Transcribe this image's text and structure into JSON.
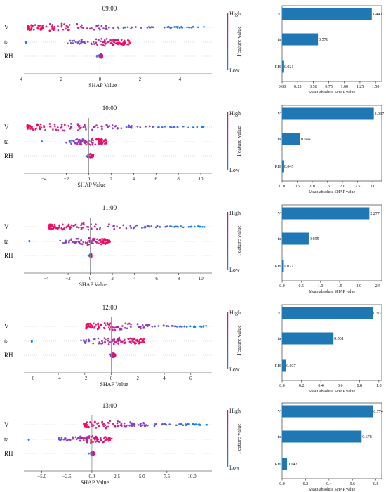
{
  "colors": {
    "high": "#ff0052",
    "low": "#008bfb",
    "bar": "#1f77b4"
  },
  "colorbar": {
    "high_label": "High",
    "low_label": "Low",
    "title": "Feature value"
  },
  "chart_data": [
    {
      "type": "scatter",
      "title": "09:00",
      "xlabel": "SHAP Value",
      "features": [
        "V",
        "ta",
        "RH"
      ],
      "xlim": [
        -3.8,
        5.6
      ],
      "xticks": [
        -4,
        -2,
        0,
        2,
        4
      ],
      "xticklabels": [
        "−4",
        "−2",
        "0",
        "2",
        "4"
      ],
      "spread": [
        [
          -3.6,
          5.3
        ],
        [
          -3.7,
          1.5
        ],
        [
          -0.15,
          0.12
        ]
      ]
    },
    {
      "type": "bar",
      "xlabel": "Mean absolute SHAP value",
      "categories": [
        "V",
        "ta",
        "RH"
      ],
      "values": [
        1.44,
        0.576,
        0.021
      ],
      "value_labels": [
        "1.440",
        "0.576",
        "0.021"
      ],
      "xlim": [
        0,
        1.6
      ],
      "xticks": [
        0,
        0.25,
        0.5,
        0.75,
        1.0,
        1.25,
        1.5
      ],
      "xticklabels": [
        "0.00",
        "0.25",
        "0.50",
        "0.75",
        "1.00",
        "1.25",
        "1.50"
      ]
    },
    {
      "type": "scatter",
      "title": "10:00",
      "xlabel": "SHAP Value",
      "features": [
        "V",
        "ta",
        "RH"
      ],
      "xlim": [
        -5.8,
        11
      ],
      "xticks": [
        -4,
        -2,
        0,
        2,
        4,
        6,
        8,
        10
      ],
      "xticklabels": [
        "−4",
        "−2",
        "0",
        "2",
        "4",
        "6",
        "8",
        "10"
      ],
      "spread": [
        [
          -5.5,
          10.5
        ],
        [
          -4.2,
          1.6
        ],
        [
          -0.6,
          0.4
        ]
      ]
    },
    {
      "type": "bar",
      "xlabel": "Mean absolute SHAP value",
      "categories": [
        "V",
        "ta",
        "RH"
      ],
      "values": [
        3.037,
        0.604,
        0.045
      ],
      "value_labels": [
        "3.037",
        "0.604",
        "0.045"
      ],
      "xlim": [
        0,
        3.3
      ],
      "xticks": [
        0,
        0.5,
        1.0,
        1.5,
        2.0,
        2.5,
        3.0
      ],
      "xticklabels": [
        "0.0",
        "0.5",
        "1.0",
        "1.5",
        "2.0",
        "2.5",
        "3.0"
      ]
    },
    {
      "type": "scatter",
      "title": "11:00",
      "xlabel": "SHAP Value",
      "features": [
        "V",
        "ta",
        "RH"
      ],
      "xlim": [
        -6,
        11
      ],
      "xticks": [
        -4,
        -2,
        0,
        2,
        4,
        6,
        8,
        10
      ],
      "xticklabels": [
        "−4",
        "−2",
        "0",
        "2",
        "4",
        "6",
        "8",
        "10"
      ],
      "spread": [
        [
          -3.7,
          10.5
        ],
        [
          -5.5,
          1.8
        ],
        [
          -0.15,
          0.12
        ]
      ]
    },
    {
      "type": "bar",
      "xlabel": "Mean absolute SHAP value",
      "categories": [
        "V",
        "ta",
        "RH"
      ],
      "values": [
        2.277,
        0.695,
        0.027
      ],
      "value_labels": [
        "2.277",
        "0.695",
        "0.027"
      ],
      "xlim": [
        0,
        2.6
      ],
      "xticks": [
        0,
        0.5,
        1.0,
        1.5,
        2.0,
        2.5
      ],
      "xticklabels": [
        "0.0",
        "0.5",
        "1.0",
        "1.5",
        "2.0",
        "2.5"
      ]
    },
    {
      "type": "scatter",
      "title": "12:00",
      "xlabel": "SHAP Value",
      "features": [
        "V",
        "ta",
        "RH"
      ],
      "xlim": [
        -6.6,
        7.6
      ],
      "xticks": [
        -6,
        -4,
        -2,
        0,
        2,
        4,
        6
      ],
      "xticklabels": [
        "−6",
        "−4",
        "−2",
        "0",
        "2",
        "4",
        "6"
      ],
      "spread": [
        [
          -1.9,
          7.3
        ],
        [
          -6.0,
          2.5
        ],
        [
          -0.3,
          0.3
        ]
      ]
    },
    {
      "type": "bar",
      "xlabel": "Mean absolute SHAP value",
      "categories": [
        "V",
        "ta",
        "RH"
      ],
      "values": [
        0.937,
        0.531,
        0.037
      ],
      "value_labels": [
        "0.937",
        "0.531",
        "0.037"
      ],
      "xlim": [
        0,
        1.03
      ],
      "xticks": [
        0,
        0.2,
        0.4,
        0.6,
        0.8,
        1.0
      ],
      "xticklabels": [
        "0.0",
        "0.2",
        "0.4",
        "0.6",
        "0.8",
        "1.0"
      ]
    },
    {
      "type": "scatter",
      "title": "13:00",
      "xlabel": "SHAP Value",
      "features": [
        "V",
        "ta",
        "RH"
      ],
      "xlim": [
        -6.8,
        12
      ],
      "xticks": [
        -5,
        -2.5,
        0,
        2.5,
        5,
        7.5,
        10
      ],
      "xticklabels": [
        "−5.0",
        "−2.5",
        "0.0",
        "2.5",
        "5.0",
        "7.5",
        "10.0"
      ],
      "spread": [
        [
          -0.8,
          11.5
        ],
        [
          -6.3,
          2.0
        ],
        [
          -0.3,
          0.2
        ]
      ]
    },
    {
      "type": "bar",
      "xlabel": "Mean absolute SHAP value",
      "categories": [
        "V",
        "ta",
        "RH"
      ],
      "values": [
        0.774,
        0.678,
        0.042
      ],
      "value_labels": [
        "0.774",
        "0.678",
        "0.042"
      ],
      "xlim": [
        0,
        0.85
      ],
      "xticks": [
        0,
        0.2,
        0.4,
        0.6,
        0.8
      ],
      "xticklabels": [
        "0.0",
        "0.2",
        "0.4",
        "0.6",
        "0.8"
      ]
    }
  ]
}
